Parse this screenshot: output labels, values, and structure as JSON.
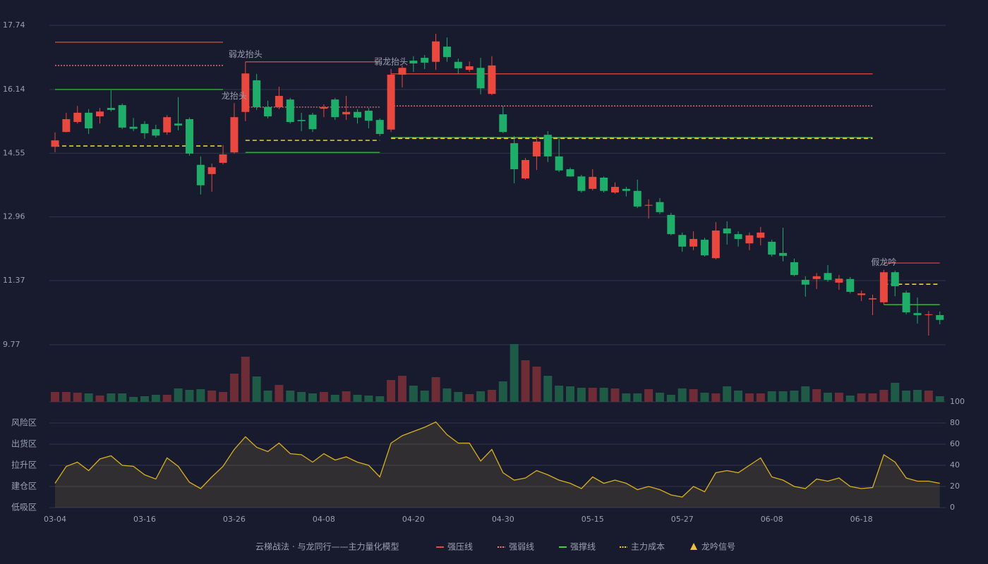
{
  "chart_data": {
    "type": "candlestick",
    "categories": [
      "03-04",
      null,
      null,
      null,
      null,
      null,
      null,
      null,
      "03-16",
      null,
      null,
      null,
      null,
      null,
      null,
      null,
      "03-26",
      null,
      null,
      null,
      null,
      null,
      null,
      null,
      "04-08",
      null,
      null,
      null,
      null,
      null,
      null,
      null,
      "04-20",
      null,
      null,
      null,
      null,
      null,
      null,
      null,
      "04-30",
      null,
      null,
      null,
      null,
      null,
      null,
      null,
      "05-15",
      null,
      null,
      null,
      null,
      null,
      null,
      null,
      "05-27",
      null,
      null,
      null,
      null,
      null,
      null,
      null,
      "06-08",
      null,
      null,
      null,
      null,
      null,
      null,
      null,
      "06-18",
      null,
      null,
      null,
      null,
      null,
      null,
      null
    ],
    "open": [
      14.71,
      15.08,
      15.33,
      15.56,
      15.47,
      15.68,
      15.75,
      15.21,
      15.28,
      15.15,
      15.07,
      15.29,
      15.4,
      14.26,
      14.03,
      14.31,
      14.57,
      15.58,
      16.37,
      15.7,
      15.7,
      15.89,
      15.38,
      15.51,
      15.66,
      15.89,
      15.52,
      15.58,
      15.61,
      15.38,
      15.14,
      16.51,
      16.86,
      16.93,
      16.83,
      17.21,
      16.83,
      16.63,
      16.68,
      16.03,
      15.52,
      14.8,
      13.92,
      14.47,
      15.01,
      14.47,
      14.15,
      13.97,
      13.66,
      13.94,
      13.57,
      13.66,
      13.61,
      13.24,
      13.33,
      13.01,
      12.51,
      12.22,
      12.39,
      11.93,
      12.67,
      12.53,
      12.3,
      12.44,
      12.34,
      12.06,
      11.83,
      11.39,
      11.41,
      11.56,
      11.32,
      11.41,
      11.01,
      10.9,
      10.83,
      11.58,
      11.07,
      10.56,
      10.51,
      10.51
    ],
    "high": [
      15.07,
      15.56,
      15.73,
      15.65,
      15.68,
      16.12,
      15.79,
      15.43,
      15.35,
      15.26,
      15.5,
      15.95,
      15.44,
      14.47,
      14.29,
      14.75,
      15.8,
      16.83,
      16.53,
      15.86,
      16.21,
      15.93,
      15.56,
      15.56,
      15.77,
      15.93,
      15.98,
      15.65,
      15.68,
      15.42,
      16.65,
      16.74,
      16.97,
      17.0,
      17.53,
      17.44,
      16.91,
      16.84,
      16.93,
      16.97,
      15.73,
      14.98,
      14.43,
      14.98,
      15.1,
      14.94,
      14.19,
      14.01,
      14.15,
      13.97,
      13.82,
      13.71,
      13.89,
      13.4,
      13.43,
      13.06,
      12.57,
      12.6,
      12.44,
      12.83,
      12.85,
      12.6,
      12.57,
      12.71,
      12.39,
      12.69,
      11.92,
      11.48,
      11.56,
      11.76,
      11.51,
      11.46,
      11.12,
      11.02,
      11.64,
      11.62,
      11.12,
      10.95,
      10.61,
      10.6
    ],
    "low": [
      14.57,
      15.07,
      15.29,
      15.03,
      15.29,
      15.59,
      15.15,
      15.1,
      14.91,
      14.94,
      15.01,
      15.12,
      14.49,
      13.52,
      13.59,
      14.27,
      14.54,
      15.35,
      15.63,
      15.42,
      15.65,
      15.29,
      15.1,
      15.08,
      15.45,
      15.38,
      15.38,
      15.29,
      15.17,
      14.98,
      15.08,
      16.19,
      16.58,
      16.65,
      16.63,
      16.83,
      16.53,
      16.58,
      16.02,
      16.0,
      15.05,
      13.8,
      13.89,
      14.13,
      14.33,
      14.08,
      13.96,
      13.57,
      13.62,
      13.57,
      13.54,
      13.47,
      13.18,
      12.92,
      13.03,
      12.5,
      12.09,
      12.13,
      11.97,
      11.9,
      12.27,
      12.22,
      12.13,
      12.25,
      11.97,
      11.85,
      11.48,
      10.97,
      11.16,
      11.34,
      11.14,
      11.05,
      10.86,
      10.51,
      10.77,
      10.98,
      10.53,
      10.3,
      10.0,
      10.28
    ],
    "close": [
      14.87,
      15.4,
      15.56,
      15.17,
      15.59,
      15.63,
      15.19,
      15.16,
      15.05,
      14.99,
      15.45,
      15.24,
      14.54,
      13.75,
      14.2,
      14.52,
      15.45,
      16.54,
      15.7,
      15.47,
      15.98,
      15.33,
      15.35,
      15.15,
      15.7,
      15.45,
      15.58,
      15.44,
      15.36,
      15.03,
      16.51,
      16.68,
      16.79,
      16.81,
      17.34,
      16.95,
      16.67,
      16.72,
      16.17,
      16.74,
      15.08,
      14.15,
      14.38,
      14.84,
      14.47,
      14.12,
      13.97,
      13.61,
      13.96,
      13.61,
      13.71,
      13.61,
      13.22,
      13.26,
      13.08,
      12.53,
      12.22,
      12.41,
      12.0,
      12.62,
      12.55,
      12.41,
      12.5,
      12.57,
      12.02,
      11.99,
      11.51,
      11.27,
      11.48,
      11.39,
      11.42,
      11.09,
      11.05,
      10.93,
      11.58,
      11.23,
      10.58,
      10.51,
      10.53,
      10.39
    ],
    "up_color": "#e8483e",
    "down_color": "#1fae6a",
    "ylim": [
      9.77,
      17.74
    ],
    "yticks": [
      {
        "value": 17.74,
        "label": "17.74"
      },
      {
        "value": 16.14,
        "label": "16.14"
      },
      {
        "value": 14.55,
        "label": "14.55"
      },
      {
        "value": 12.96,
        "label": "12.96"
      },
      {
        "value": 11.37,
        "label": "11.37"
      },
      {
        "value": 9.77,
        "label": "9.77"
      }
    ],
    "grid": true,
    "volume": [
      14,
      14,
      13,
      12,
      9,
      12,
      12,
      7,
      8,
      10,
      10,
      19,
      17,
      18,
      16,
      14,
      40,
      64,
      36,
      16,
      24,
      16,
      14,
      12,
      14,
      10,
      15,
      10,
      9,
      8,
      31,
      37,
      23,
      16,
      35,
      19,
      14,
      11,
      15,
      17,
      29,
      82,
      59,
      50,
      37,
      23,
      22,
      20,
      20,
      20,
      19,
      12,
      12,
      18,
      13,
      10,
      19,
      18,
      13,
      12,
      22,
      16,
      12,
      12,
      15,
      15,
      16,
      22,
      18,
      13,
      13,
      9,
      12,
      12,
      17,
      27,
      16,
      17,
      16,
      8
    ],
    "oscillator": {
      "color": "#d8b020",
      "values": [
        23,
        39,
        43,
        35,
        46,
        49,
        40,
        39,
        31,
        27,
        47,
        39,
        24,
        18,
        29,
        39,
        55,
        67,
        57,
        53,
        61,
        51,
        50,
        43,
        51,
        45,
        48,
        43,
        40,
        29,
        61,
        68,
        72,
        76,
        81,
        69,
        61,
        61,
        44,
        55,
        33,
        26,
        28,
        35,
        31,
        26,
        23,
        18,
        29,
        23,
        26,
        23,
        17,
        20,
        17,
        12,
        10,
        20,
        15,
        33,
        35,
        33,
        40,
        47,
        29,
        26,
        20,
        18,
        27,
        25,
        28,
        20,
        18,
        19,
        50,
        43,
        28,
        25,
        25,
        23
      ],
      "ylim": [
        0,
        100
      ],
      "ticks": [
        {
          "value": 0,
          "color": "#e8483e"
        },
        {
          "value": 20,
          "color": "#e8a040"
        },
        {
          "value": 40,
          "color": "#4a90e8"
        },
        {
          "value": 60,
          "color": "#d040d0"
        },
        {
          "value": 80,
          "color": "#e8a040"
        },
        {
          "value": 100,
          "color": "#30d060"
        }
      ],
      "zones": [
        {
          "label": "风险区",
          "value": 80,
          "color": "#e8a040"
        },
        {
          "label": "出货区",
          "value": 60,
          "color": "#d040d0"
        },
        {
          "label": "拉升区",
          "value": 40,
          "color": "#4a90e8"
        },
        {
          "label": "建仓区",
          "value": 20,
          "color": "#e8483e"
        },
        {
          "label": "低吸区",
          "value": 0,
          "color": "#e8483e"
        }
      ]
    },
    "title": "云梯战法 · 与龙同行——主力量化模型",
    "legend": [
      {
        "name": "强压线",
        "color": "#e8483e",
        "style": "solid",
        "levels": [
          {
            "start": 0,
            "end": 15,
            "value": 17.32
          },
          {
            "start": 17,
            "end": 29,
            "value": 16.83
          },
          {
            "start": 30,
            "end": 73,
            "value": 16.53
          },
          {
            "start": 74,
            "end": 79,
            "value": 11.81
          }
        ]
      },
      {
        "name": "强弱线",
        "color": "#ff8080",
        "style": "dotted",
        "levels": [
          {
            "start": 0,
            "end": 15,
            "value": 16.74
          },
          {
            "start": 17,
            "end": 29,
            "value": 15.7
          },
          {
            "start": 30,
            "end": 73,
            "value": 15.73
          }
        ]
      },
      {
        "name": "强撑线",
        "color": "#40d040",
        "style": "solid",
        "levels": [
          {
            "start": 0,
            "end": 15,
            "value": 16.14
          },
          {
            "start": 17,
            "end": 29,
            "value": 14.57
          },
          {
            "start": 30,
            "end": 73,
            "value": 14.94
          },
          {
            "start": 74,
            "end": 79,
            "value": 10.77
          }
        ]
      },
      {
        "name": "主力成本",
        "color": "#f0d020",
        "style": "dashed",
        "levels": [
          {
            "start": 0,
            "end": 15,
            "value": 14.73
          },
          {
            "start": 17,
            "end": 29,
            "value": 14.87
          },
          {
            "start": 30,
            "end": 73,
            "value": 14.92
          },
          {
            "start": 74,
            "end": 79,
            "value": 11.28
          }
        ]
      },
      {
        "name": "龙吟信号",
        "color": "#f0c040",
        "style": "triangle",
        "levels": []
      }
    ],
    "annotations": [
      {
        "text": "弱龙抬头",
        "index": 17,
        "color": "#7ec8ff"
      },
      {
        "text": "龙抬头",
        "index": 16,
        "color": "#7ec8ff"
      },
      {
        "text": "弱龙抬头",
        "index": 30,
        "color": "#7ec8ff"
      },
      {
        "text": "假龙吟",
        "index": 74,
        "color": "#ff6060"
      }
    ]
  }
}
